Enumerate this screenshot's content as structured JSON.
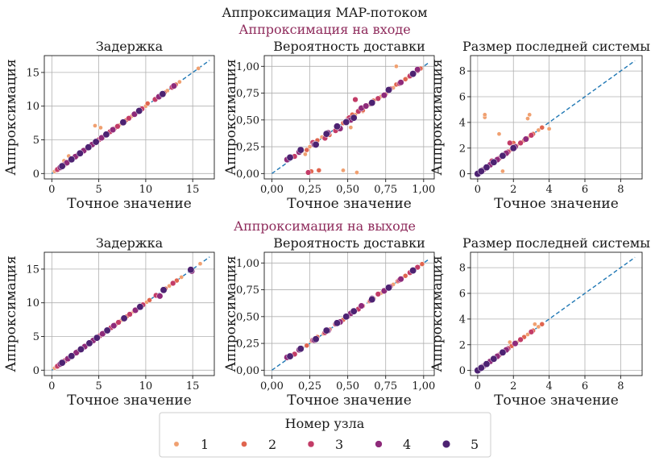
{
  "figure": {
    "title": "Аппроксимация MAP-потоком",
    "row_titles": [
      "Аппроксимация на входе",
      "Аппроксимация на выходе"
    ],
    "legend": {
      "title": "Номер узла",
      "labels": [
        "1",
        "2",
        "3",
        "4",
        "5"
      ]
    },
    "colors": {
      "node1": "#f0a070",
      "node2": "#e0654f",
      "node3": "#c33c67",
      "node4": "#8e2a7a",
      "node5": "#4d2272",
      "diag": "#1f77b4",
      "grid": "#b0b0b0"
    }
  },
  "chart_data": [
    {
      "type": "scatter",
      "title": "Задержка",
      "xlabel": "Точное значение",
      "ylabel": "Аппроксимация",
      "xlim": [
        -0.8,
        17.3
      ],
      "ylim": [
        -0.8,
        17.5
      ],
      "xticks": [
        0,
        5,
        10,
        15
      ],
      "yticks": [
        0,
        5,
        10,
        15
      ],
      "xtick_labels": [
        "0",
        "5",
        "10",
        "15"
      ],
      "ytick_labels": [
        "0",
        "5",
        "10",
        "15"
      ],
      "grid": true,
      "diagonal": [
        0,
        16.8
      ],
      "series": [
        {
          "name": "1",
          "x": [
            0.3,
            0.8,
            1.2,
            1.8,
            2.4,
            3.1,
            4.0,
            4.8,
            6.0,
            7.2,
            8.5,
            10.0,
            12.3,
            13.6,
            15.6,
            1.3,
            4.6,
            5.2
          ],
          "y": [
            0.3,
            0.8,
            1.4,
            2.6,
            2.5,
            3.1,
            4.0,
            4.8,
            6.0,
            7.2,
            8.5,
            10.0,
            12.3,
            13.6,
            15.6,
            1.9,
            7.1,
            6.8
          ]
        },
        {
          "name": "2",
          "x": [
            0.5,
            1.0,
            1.7,
            2.2,
            2.9,
            3.6,
            4.4,
            5.5,
            6.7,
            7.9,
            9.1,
            10.2,
            12.0,
            13.2
          ],
          "y": [
            0.5,
            1.0,
            1.7,
            2.2,
            2.9,
            3.6,
            4.4,
            5.5,
            6.7,
            7.9,
            9.1,
            10.4,
            12.0,
            13.2
          ]
        },
        {
          "name": "3",
          "x": [
            0.6,
            1.4,
            2.0,
            2.7,
            3.3,
            4.1,
            5.0,
            6.2,
            7.0,
            8.2,
            9.6,
            11.0,
            12.8
          ],
          "y": [
            0.6,
            1.4,
            2.0,
            2.7,
            3.3,
            4.1,
            5.0,
            6.2,
            7.0,
            8.2,
            9.6,
            11.0,
            12.8
          ]
        },
        {
          "name": "4",
          "x": [
            0.9,
            1.6,
            2.5,
            3.4,
            4.3,
            5.3,
            6.5,
            8.8,
            11.4,
            13.0
          ],
          "y": [
            0.9,
            1.6,
            2.5,
            3.4,
            4.3,
            5.3,
            6.5,
            8.8,
            11.4,
            13.0
          ]
        },
        {
          "name": "5",
          "x": [
            1.1,
            2.1,
            3.0,
            3.9,
            4.7,
            5.8,
            7.6,
            9.3,
            11.8
          ],
          "y": [
            1.1,
            2.1,
            3.0,
            3.9,
            4.7,
            5.8,
            7.6,
            9.3,
            11.8
          ]
        }
      ]
    },
    {
      "type": "scatter",
      "title": "Вероятность доставки",
      "xlabel": "Точное значение",
      "ylabel": "Аппроксимация",
      "xlim": [
        -0.05,
        1.07
      ],
      "ylim": [
        -0.05,
        1.1
      ],
      "xticks": [
        0,
        0.25,
        0.5,
        0.75,
        1.0
      ],
      "yticks": [
        0,
        0.25,
        0.5,
        0.75,
        1.0
      ],
      "xtick_labels": [
        "0,00",
        "0,25",
        "0,50",
        "0,75",
        "1,00"
      ],
      "ytick_labels": [
        "0,00",
        "0,25",
        "0,50",
        "0,75",
        "1,00"
      ],
      "grid": true,
      "diagonal": [
        0,
        1.04
      ],
      "series": [
        {
          "name": "1",
          "x": [
            0.2,
            0.25,
            0.33,
            0.44,
            0.5,
            0.55,
            0.63,
            0.72,
            0.8,
            0.85,
            0.9,
            0.95,
            0.22,
            0.47,
            0.52,
            0.56,
            0.3,
            0.82,
            0.6
          ],
          "y": [
            0.21,
            0.25,
            0.34,
            0.44,
            0.52,
            0.55,
            0.64,
            0.72,
            0.8,
            0.86,
            0.9,
            0.95,
            0.18,
            0.03,
            0.43,
            0.01,
            0.3,
            1.0,
            0.58
          ]
        },
        {
          "name": "2",
          "x": [
            0.23,
            0.3,
            0.38,
            0.47,
            0.53,
            0.6,
            0.67,
            0.75,
            0.82,
            0.88,
            0.93,
            0.98,
            0.26,
            0.31,
            0.58
          ],
          "y": [
            0.22,
            0.31,
            0.36,
            0.47,
            0.55,
            0.59,
            0.68,
            0.74,
            0.83,
            0.88,
            0.93,
            0.98,
            0.02,
            0.03,
            0.6
          ]
        },
        {
          "name": "3",
          "x": [
            0.15,
            0.27,
            0.35,
            0.42,
            0.51,
            0.57,
            0.65,
            0.7,
            0.78,
            0.84,
            0.91,
            0.96,
            0.24,
            0.55
          ],
          "y": [
            0.16,
            0.29,
            0.33,
            0.4,
            0.52,
            0.58,
            0.65,
            0.7,
            0.79,
            0.84,
            0.91,
            0.96,
            0.01,
            0.69
          ]
        },
        {
          "name": "4",
          "x": [
            0.1,
            0.18,
            0.28,
            0.37,
            0.45,
            0.52,
            0.59,
            0.62,
            0.74,
            0.85,
            0.96
          ],
          "y": [
            0.13,
            0.2,
            0.27,
            0.38,
            0.42,
            0.5,
            0.61,
            0.63,
            0.73,
            0.85,
            0.97
          ]
        },
        {
          "name": "5",
          "x": [
            0.12,
            0.19,
            0.29,
            0.36,
            0.43,
            0.49,
            0.54,
            0.66,
            0.77,
            0.93
          ],
          "y": [
            0.15,
            0.22,
            0.27,
            0.37,
            0.44,
            0.48,
            0.52,
            0.66,
            0.78,
            0.93
          ]
        }
      ]
    },
    {
      "type": "scatter",
      "title": "Размер последней системы",
      "xlabel": "Точное значение",
      "ylabel": "Аппроксимация",
      "xlim": [
        -0.4,
        9.2
      ],
      "ylim": [
        -0.4,
        9.2
      ],
      "xticks": [
        0,
        2,
        4,
        6,
        8
      ],
      "yticks": [
        0,
        2,
        4,
        6,
        8
      ],
      "xtick_labels": [
        "0",
        "2",
        "4",
        "6",
        "8"
      ],
      "ytick_labels": [
        "0",
        "2",
        "4",
        "6",
        "8"
      ],
      "grid": true,
      "diagonal": [
        0,
        8.8
      ],
      "series": [
        {
          "name": "1",
          "x": [
            0.1,
            0.3,
            0.6,
            1.0,
            1.5,
            2.2,
            2.8,
            3.4,
            0.4,
            0.4,
            1.2,
            2.9,
            2.8,
            1.4,
            4.0
          ],
          "y": [
            0.1,
            0.3,
            0.6,
            1.0,
            1.5,
            2.2,
            2.8,
            3.4,
            4.4,
            4.6,
            3.1,
            4.6,
            4.3,
            0.2,
            3.5
          ]
        },
        {
          "name": "2",
          "x": [
            0.2,
            0.5,
            0.9,
            1.3,
            1.9,
            2.6,
            3.1,
            3.6,
            2.0
          ],
          "y": [
            0.2,
            0.5,
            0.9,
            1.3,
            1.9,
            2.6,
            3.1,
            3.6,
            2.4
          ]
        },
        {
          "name": "3",
          "x": [
            0.2,
            0.4,
            0.8,
            1.2,
            1.7,
            2.4,
            3.0,
            0.8,
            1.8
          ],
          "y": [
            0.2,
            0.4,
            0.8,
            1.2,
            1.7,
            2.4,
            3.0,
            1.0,
            2.4
          ]
        },
        {
          "name": "4",
          "x": [
            0.1,
            0.3,
            0.7,
            1.1,
            1.6,
            2.1,
            2.7
          ],
          "y": [
            0.1,
            0.3,
            0.7,
            1.1,
            1.6,
            2.1,
            2.7
          ]
        },
        {
          "name": "5",
          "x": [
            0.0,
            0.2,
            0.5,
            0.9,
            1.4,
            2.0
          ],
          "y": [
            0.0,
            0.2,
            0.5,
            0.9,
            1.4,
            2.0
          ]
        }
      ]
    },
    {
      "type": "scatter",
      "title": "Задержка",
      "xlabel": "Точное значение",
      "ylabel": "Аппроксимация",
      "xlim": [
        -0.8,
        17.3
      ],
      "ylim": [
        -0.8,
        17.5
      ],
      "xticks": [
        0,
        5,
        10,
        15
      ],
      "yticks": [
        0,
        5,
        10,
        15
      ],
      "xtick_labels": [
        "0",
        "5",
        "10",
        "15"
      ],
      "ytick_labels": [
        "0",
        "5",
        "10",
        "15"
      ],
      "grid": true,
      "diagonal": [
        0,
        16.8
      ],
      "series": [
        {
          "name": "1",
          "x": [
            0.3,
            0.8,
            1.3,
            2.0,
            2.6,
            3.3,
            4.2,
            5.0,
            6.2,
            7.4,
            8.7,
            10.1,
            12.5,
            13.8,
            15.8
          ],
          "y": [
            0.3,
            0.8,
            1.3,
            2.0,
            2.6,
            3.3,
            4.2,
            5.0,
            6.2,
            7.4,
            8.7,
            10.1,
            12.5,
            13.8,
            15.8
          ]
        },
        {
          "name": "2",
          "x": [
            0.5,
            1.1,
            1.7,
            2.3,
            3.0,
            3.7,
            4.5,
            5.6,
            6.8,
            8.0,
            9.2,
            10.4,
            12.1,
            13.3
          ],
          "y": [
            0.5,
            1.1,
            1.7,
            2.3,
            3.0,
            3.7,
            4.5,
            5.6,
            6.8,
            8.0,
            9.2,
            10.4,
            12.1,
            13.3
          ]
        },
        {
          "name": "3",
          "x": [
            0.6,
            1.4,
            2.1,
            2.8,
            3.4,
            4.2,
            5.1,
            6.3,
            7.1,
            8.3,
            9.7,
            11.1,
            12.9
          ],
          "y": [
            0.6,
            1.4,
            2.1,
            2.8,
            3.4,
            4.2,
            5.1,
            6.3,
            7.1,
            8.3,
            9.7,
            11.1,
            12.9
          ]
        },
        {
          "name": "4",
          "x": [
            0.9,
            1.7,
            2.6,
            3.5,
            4.4,
            5.4,
            6.6,
            8.9,
            11.5,
            14.9
          ],
          "y": [
            0.9,
            1.7,
            2.6,
            3.5,
            4.4,
            5.4,
            6.6,
            8.9,
            11.0,
            14.7
          ]
        },
        {
          "name": "5",
          "x": [
            1.1,
            2.1,
            3.1,
            4.0,
            4.8,
            5.9,
            7.7,
            9.4,
            11.9,
            14.8
          ],
          "y": [
            1.1,
            2.1,
            3.1,
            4.0,
            4.8,
            5.9,
            7.7,
            9.4,
            11.9,
            14.9
          ]
        }
      ]
    },
    {
      "type": "scatter",
      "title": "Вероятность доставки",
      "xlabel": "Точное значение",
      "ylabel": "Аппроксимация",
      "xlim": [
        -0.05,
        1.07
      ],
      "ylim": [
        -0.05,
        1.1
      ],
      "xticks": [
        0,
        0.25,
        0.5,
        0.75,
        1.0
      ],
      "yticks": [
        0,
        0.25,
        0.5,
        0.75,
        1.0
      ],
      "xtick_labels": [
        "0,00",
        "0,25",
        "0,50",
        "0,75",
        "1,00"
      ],
      "ytick_labels": [
        "0,00",
        "0,25",
        "0,50",
        "0,75",
        "1,00"
      ],
      "grid": true,
      "diagonal": [
        0,
        1.04
      ],
      "series": [
        {
          "name": "1",
          "x": [
            0.2,
            0.26,
            0.34,
            0.44,
            0.51,
            0.56,
            0.64,
            0.72,
            0.8,
            0.86,
            0.91,
            0.96
          ],
          "y": [
            0.21,
            0.27,
            0.34,
            0.45,
            0.52,
            0.56,
            0.64,
            0.72,
            0.8,
            0.86,
            0.91,
            0.96
          ]
        },
        {
          "name": "2",
          "x": [
            0.23,
            0.3,
            0.38,
            0.47,
            0.54,
            0.6,
            0.67,
            0.75,
            0.83,
            0.88,
            0.93,
            0.99
          ],
          "y": [
            0.23,
            0.31,
            0.38,
            0.47,
            0.54,
            0.6,
            0.67,
            0.75,
            0.83,
            0.88,
            0.94,
            0.99
          ]
        },
        {
          "name": "3",
          "x": [
            0.15,
            0.27,
            0.35,
            0.42,
            0.5,
            0.57,
            0.65,
            0.7,
            0.78,
            0.84,
            0.91,
            0.96
          ],
          "y": [
            0.15,
            0.28,
            0.35,
            0.43,
            0.5,
            0.57,
            0.65,
            0.71,
            0.78,
            0.84,
            0.91,
            0.96
          ]
        },
        {
          "name": "4",
          "x": [
            0.1,
            0.18,
            0.28,
            0.37,
            0.45,
            0.52,
            0.59,
            0.66,
            0.74,
            0.85
          ],
          "y": [
            0.12,
            0.19,
            0.28,
            0.37,
            0.45,
            0.53,
            0.6,
            0.67,
            0.74,
            0.85
          ]
        },
        {
          "name": "5",
          "x": [
            0.12,
            0.19,
            0.29,
            0.36,
            0.43,
            0.49,
            0.54,
            0.66,
            0.77,
            0.93
          ],
          "y": [
            0.13,
            0.2,
            0.29,
            0.37,
            0.44,
            0.5,
            0.55,
            0.66,
            0.77,
            0.93
          ]
        }
      ]
    },
    {
      "type": "scatter",
      "title": "Размер последней системы",
      "xlabel": "Точное значение",
      "ylabel": "Аппроксимация",
      "xlim": [
        -0.4,
        9.2
      ],
      "ylim": [
        -0.4,
        9.2
      ],
      "xticks": [
        0,
        2,
        4,
        6,
        8
      ],
      "yticks": [
        0,
        2,
        4,
        6,
        8
      ],
      "xtick_labels": [
        "0",
        "2",
        "4",
        "6",
        "8"
      ],
      "ytick_labels": [
        "0",
        "2",
        "4",
        "6",
        "8"
      ],
      "grid": true,
      "diagonal": [
        0,
        8.8
      ],
      "series": [
        {
          "name": "1",
          "x": [
            0.1,
            0.3,
            0.6,
            1.0,
            1.5,
            2.2,
            2.8,
            3.4,
            1.8,
            3.2
          ],
          "y": [
            0.1,
            0.3,
            0.6,
            1.0,
            1.5,
            2.2,
            2.8,
            3.4,
            2.2,
            3.6
          ]
        },
        {
          "name": "2",
          "x": [
            0.2,
            0.5,
            0.9,
            1.3,
            1.9,
            2.6,
            3.1,
            3.6
          ],
          "y": [
            0.2,
            0.5,
            0.9,
            1.3,
            1.9,
            2.6,
            3.1,
            3.6
          ]
        },
        {
          "name": "3",
          "x": [
            0.2,
            0.4,
            0.8,
            1.2,
            1.7,
            2.4,
            3.0
          ],
          "y": [
            0.2,
            0.4,
            0.8,
            1.2,
            1.7,
            2.4,
            3.0
          ]
        },
        {
          "name": "4",
          "x": [
            0.1,
            0.3,
            0.7,
            1.1,
            1.6,
            2.1
          ],
          "y": [
            0.1,
            0.3,
            0.7,
            1.1,
            1.6,
            2.1
          ]
        },
        {
          "name": "5",
          "x": [
            0.0,
            0.2,
            0.5,
            0.9,
            1.4
          ],
          "y": [
            0.0,
            0.2,
            0.5,
            0.9,
            1.4
          ]
        }
      ]
    }
  ]
}
